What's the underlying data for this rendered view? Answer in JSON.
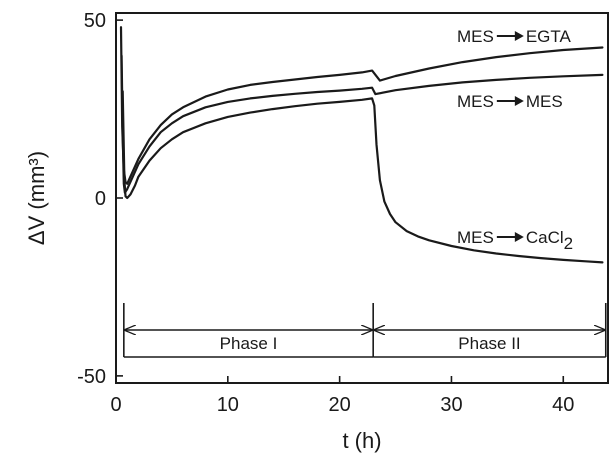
{
  "chart_data": {
    "type": "line",
    "title": "",
    "xlabel": "t (h)",
    "ylabel": "ΔV (mm³)",
    "xlim": [
      0,
      44
    ],
    "ylim": [
      -52,
      52
    ],
    "xticks": [
      0,
      10,
      20,
      30,
      40
    ],
    "yticks": [
      -50,
      0,
      50
    ],
    "grid": false,
    "line_color": "#1a1a1a",
    "series": [
      {
        "label_parts": [
          "MES",
          "EGTA",
          ""
        ],
        "x": [
          0.45,
          0.55,
          0.7,
          0.85,
          1.0,
          1.5,
          2,
          3,
          4,
          5,
          6,
          8,
          10,
          12,
          14,
          16,
          18,
          20,
          22,
          22.9,
          23.6,
          25,
          28,
          31,
          34,
          37,
          40,
          43.5
        ],
        "y": [
          48,
          20,
          8,
          4.5,
          4,
          7.5,
          11,
          16.5,
          20.5,
          23.5,
          25.5,
          28.5,
          30.5,
          31.8,
          32.6,
          33.3,
          34,
          34.6,
          35.3,
          35.8,
          33,
          34.3,
          36.4,
          38.2,
          39.6,
          40.7,
          41.6,
          42.3
        ]
      },
      {
        "label_parts": [
          "MES",
          "MES",
          ""
        ],
        "x": [
          0.5,
          0.6,
          0.7,
          0.8,
          1.0,
          1.5,
          2,
          3,
          4,
          5,
          6,
          8,
          10,
          12,
          14,
          16,
          18,
          20,
          22,
          22.9,
          23.2,
          25,
          28,
          31,
          34,
          37,
          40,
          43.5
        ],
        "y": [
          40,
          18,
          4,
          1.5,
          2.5,
          6,
          9.5,
          14.5,
          18.5,
          21,
          23,
          25.5,
          27,
          28,
          28.7,
          29.3,
          29.8,
          30.2,
          30.7,
          31,
          29.2,
          30.3,
          31.5,
          32.5,
          33.2,
          33.8,
          34.2,
          34.6
        ]
      },
      {
        "label_parts": [
          "MES",
          "CaCl",
          "2"
        ],
        "x": [
          0.6,
          0.75,
          0.85,
          1.0,
          1.3,
          1.7,
          2,
          3,
          4,
          5,
          6,
          8,
          10,
          12,
          14,
          16,
          18,
          20,
          22,
          22.9,
          23.1,
          23.3,
          23.6,
          24,
          24.5,
          25,
          26,
          27,
          28,
          30,
          32,
          34,
          36,
          38,
          40,
          42,
          43.5
        ],
        "y": [
          30,
          5,
          0.5,
          0,
          1,
          3.5,
          6,
          10.5,
          14,
          16.5,
          18.5,
          21,
          22.8,
          24,
          25,
          25.8,
          26.5,
          27,
          27.6,
          28,
          26,
          15,
          5,
          -1,
          -4.5,
          -6.8,
          -9.3,
          -10.8,
          -11.9,
          -13.5,
          -14.7,
          -15.6,
          -16.3,
          -16.9,
          -17.4,
          -17.8,
          -18.1
        ]
      }
    ],
    "phases": [
      {
        "label": "Phase I",
        "start": 0.7,
        "end": 23
      },
      {
        "label": "Phase II",
        "start": 23,
        "end": 43.8
      }
    ]
  }
}
